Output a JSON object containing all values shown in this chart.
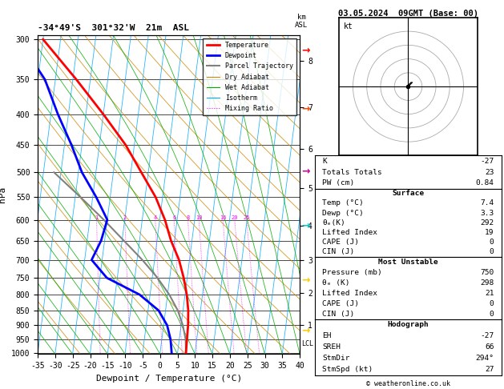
{
  "title_left": "-34°49'S  301°32'W  21m  ASL",
  "title_right": "03.05.2024  09GMT (Base: 00)",
  "xlabel": "Dewpoint / Temperature (°C)",
  "ylabel_left": "hPa",
  "pressure_levels": [
    300,
    350,
    400,
    450,
    500,
    550,
    600,
    650,
    700,
    750,
    800,
    850,
    900,
    950,
    1000
  ],
  "xmin": -35,
  "xmax": 40,
  "pmin": 295,
  "pmax": 1005,
  "bg_color": "#ffffff",
  "temp_profile_T": [
    7.4,
    7.2,
    7.0,
    6.5,
    5.5,
    4.0,
    2.0,
    -1.0,
    -3.5,
    -7.0,
    -12.0,
    -17.5,
    -25.0,
    -34.0,
    -45.0
  ],
  "temp_profile_p": [
    1000,
    950,
    900,
    850,
    800,
    750,
    700,
    650,
    600,
    550,
    500,
    450,
    400,
    350,
    300
  ],
  "dewp_profile_T": [
    3.3,
    2.5,
    1.0,
    -2.0,
    -8.0,
    -18.0,
    -23.0,
    -21.0,
    -20.0,
    -24.0,
    -29.0,
    -33.0,
    -38.0,
    -43.0,
    -52.0
  ],
  "dewp_profile_p": [
    1000,
    950,
    900,
    850,
    800,
    750,
    700,
    650,
    600,
    550,
    500,
    450,
    400,
    350,
    300
  ],
  "parcel_T": [
    7.4,
    6.8,
    5.5,
    3.5,
    0.5,
    -3.5,
    -8.5,
    -14.5,
    -21.0,
    -28.5,
    -37.0
  ],
  "parcel_p": [
    1000,
    950,
    900,
    850,
    800,
    750,
    700,
    650,
    600,
    550,
    500
  ],
  "temp_color": "#ff0000",
  "dewp_color": "#0000ff",
  "parcel_color": "#808080",
  "dry_adiabat_color": "#cc8800",
  "wet_adiabat_color": "#00aa00",
  "isotherm_color": "#00aaff",
  "mixing_color": "#ff00ff",
  "km_levels": [
    1,
    2,
    3,
    4,
    5,
    6,
    7,
    8
  ],
  "km_pressures": [
    898,
    795,
    700,
    613,
    531,
    457,
    389,
    326
  ],
  "lcl_pressure": 965,
  "mixing_ratios": [
    1,
    2,
    4,
    6,
    8,
    10,
    16,
    20,
    25
  ],
  "skew_factor": 22,
  "info_K": "-27",
  "info_TT": "23",
  "info_PW": "0.84",
  "info_surf_temp": "7.4",
  "info_surf_dewp": "3.3",
  "info_surf_theta": "292",
  "info_surf_LI": "19",
  "info_surf_CAPE": "0",
  "info_surf_CIN": "0",
  "info_mu_pres": "750",
  "info_mu_theta": "298",
  "info_mu_LI": "21",
  "info_mu_CAPE": "0",
  "info_mu_CIN": "0",
  "info_EH": "-27",
  "info_SREH": "66",
  "info_StmDir": "294°",
  "info_StmSpd": "27"
}
